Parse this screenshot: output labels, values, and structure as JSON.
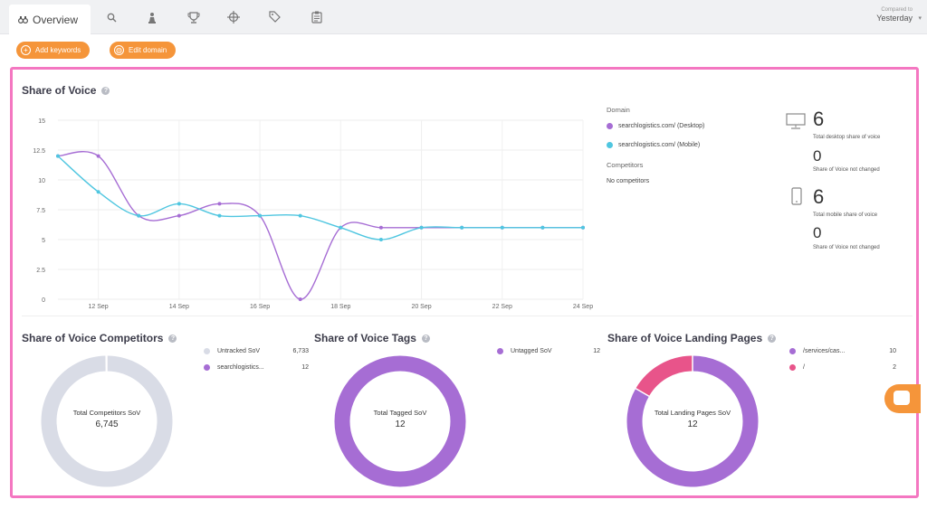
{
  "toolbar": {
    "overview_tab": "Overview",
    "compared_label": "Compared to",
    "compared_value": "Yesterday",
    "add_keywords": "Add keywords",
    "edit_domain": "Edit domain"
  },
  "share_of_voice": {
    "title": "Share of Voice",
    "legend": {
      "domain_header": "Domain",
      "series": [
        {
          "name": "searchlogistics.com/ (Desktop)",
          "color": "#a66dd4"
        },
        {
          "name": "searchlogistics.com/ (Mobile)",
          "color": "#4fc6e0"
        }
      ],
      "competitors_header": "Competitors",
      "no_competitors": "No competitors"
    },
    "stats": {
      "desktop_value": "6",
      "desktop_caption": "Total desktop share of voice",
      "desktop_change": "0",
      "desktop_change_caption": "Share of Voice not changed",
      "mobile_value": "6",
      "mobile_caption": "Total mobile share of voice",
      "mobile_change": "0",
      "mobile_change_caption": "Share of Voice not changed"
    }
  },
  "chart_data": {
    "type": "line",
    "x": [
      "11 Sep",
      "12 Sep",
      "13 Sep",
      "14 Sep",
      "15 Sep",
      "16 Sep",
      "17 Sep",
      "18 Sep",
      "19 Sep",
      "20 Sep",
      "21 Sep",
      "22 Sep",
      "23 Sep",
      "24 Sep"
    ],
    "x_tick_labels": [
      "12 Sep",
      "14 Sep",
      "16 Sep",
      "18 Sep",
      "20 Sep",
      "22 Sep",
      "24 Sep"
    ],
    "y_tick_labels": [
      "15",
      "12.5",
      "10",
      "7.5",
      "5",
      "2.5",
      "0"
    ],
    "ylim": [
      0,
      15
    ],
    "series": [
      {
        "name": "searchlogistics.com/ (Desktop)",
        "color": "#a66dd4",
        "values": [
          12,
          12,
          7,
          7,
          8,
          7,
          0,
          6,
          6,
          6,
          6,
          6,
          6,
          6
        ]
      },
      {
        "name": "searchlogistics.com/ (Mobile)",
        "color": "#4fc6e0",
        "values": [
          12,
          9,
          7,
          8,
          7,
          7,
          7,
          6,
          5,
          6,
          6,
          6,
          6,
          6
        ]
      }
    ],
    "grid": true
  },
  "competitors": {
    "title": "Share of Voice Competitors",
    "center_label": "Total Competitors SoV",
    "center_value": "6,745",
    "items": [
      {
        "label": "Untracked SoV",
        "value": "6,733",
        "amount": 6733,
        "color": "#d9dce6"
      },
      {
        "label": "searchlogistics...",
        "value": "12",
        "amount": 12,
        "color": "#a66dd4"
      }
    ]
  },
  "tags": {
    "title": "Share of Voice Tags",
    "center_label": "Total Tagged SoV",
    "center_value": "12",
    "items": [
      {
        "label": "Untagged SoV",
        "value": "12",
        "amount": 12,
        "color": "#a66dd4"
      }
    ]
  },
  "landing": {
    "title": "Share of Voice Landing Pages",
    "center_label": "Total Landing Pages SoV",
    "center_value": "12",
    "items": [
      {
        "label": "/services/cas...",
        "value": "10",
        "amount": 10,
        "color": "#a66dd4"
      },
      {
        "label": "/",
        "value": "2",
        "amount": 2,
        "color": "#e8548a"
      }
    ]
  }
}
